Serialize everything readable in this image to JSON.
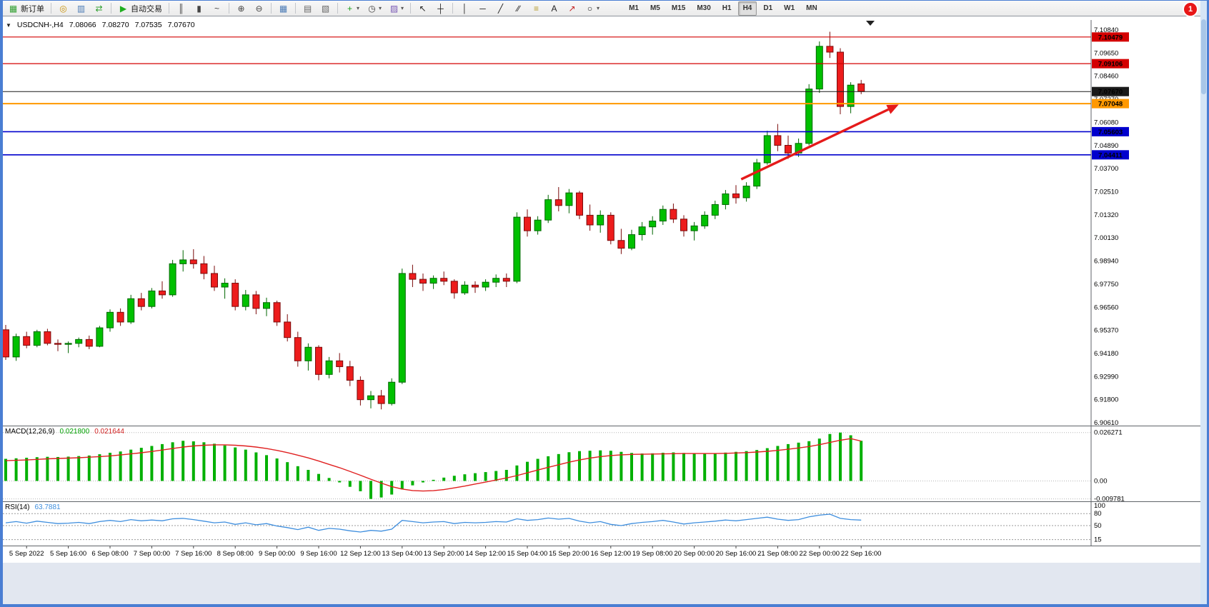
{
  "window": {
    "notification_count": "1"
  },
  "toolbar": {
    "items": [
      {
        "type": "button",
        "name": "new-order-button",
        "icon": "new-order-icon",
        "glyph": "▦",
        "glyph_color": "#2e9e2e",
        "label": "新订单"
      },
      {
        "type": "sep"
      },
      {
        "type": "button",
        "name": "mql-wizard-button",
        "icon": "compass-icon",
        "glyph": "◎",
        "glyph_color": "#c8920a"
      },
      {
        "type": "button",
        "name": "charts-button",
        "icon": "charts-icon",
        "glyph": "▥",
        "glyph_color": "#4a7ab5"
      },
      {
        "type": "button",
        "name": "refresh-button",
        "icon": "refresh-icon",
        "glyph": "⇄",
        "glyph_color": "#2e9e2e"
      },
      {
        "type": "sep"
      },
      {
        "type": "button",
        "name": "autotrading-button",
        "icon": "play-icon",
        "glyph": "▶",
        "glyph_color": "#1fae1f",
        "label": "自动交易"
      },
      {
        "type": "sep"
      },
      {
        "type": "button",
        "name": "bar-chart-button",
        "icon": "bar-chart-icon",
        "glyph": "║",
        "glyph_color": "#444"
      },
      {
        "type": "button",
        "name": "candlestick-chart-button",
        "icon": "candlestick-chart-icon",
        "glyph": "▮",
        "glyph_color": "#444"
      },
      {
        "type": "button",
        "name": "line-chart-button",
        "icon": "line-chart-icon",
        "glyph": "~",
        "glyph_color": "#444"
      },
      {
        "type": "sep"
      },
      {
        "type": "button",
        "name": "zoom-in-button",
        "icon": "zoom-in-icon",
        "glyph": "⊕",
        "glyph_color": "#444"
      },
      {
        "type": "button",
        "name": "zoom-out-button",
        "icon": "zoom-out-icon",
        "glyph": "⊖",
        "glyph_color": "#444"
      },
      {
        "type": "sep"
      },
      {
        "type": "button",
        "name": "tile-windows-button",
        "icon": "tile-windows-icon",
        "glyph": "▦",
        "glyph_color": "#4a7ab5"
      },
      {
        "type": "sep"
      },
      {
        "type": "button",
        "name": "profile-button",
        "icon": "profile-icon",
        "glyph": "▤",
        "glyph_color": "#666"
      },
      {
        "type": "button",
        "name": "cascade-button",
        "icon": "cascade-icon",
        "glyph": "▧",
        "glyph_color": "#666"
      },
      {
        "type": "sep"
      },
      {
        "type": "button",
        "name": "indicators-button",
        "icon": "indicators-plus-icon",
        "glyph": "+",
        "glyph_color": "#1a9e1a",
        "dropdown": true
      },
      {
        "type": "button",
        "name": "periods-button",
        "icon": "clock-icon",
        "glyph": "◷",
        "glyph_color": "#444",
        "dropdown": true
      },
      {
        "type": "button",
        "name": "templates-button",
        "icon": "template-icon",
        "glyph": "▨",
        "glyph_color": "#7a5ab5",
        "dropdown": true
      },
      {
        "type": "sep"
      },
      {
        "type": "button",
        "name": "cursor-button",
        "icon": "cursor-icon",
        "glyph": "↖",
        "glyph_color": "#222"
      },
      {
        "type": "button",
        "name": "crosshair-button",
        "icon": "crosshair-icon",
        "glyph": "┼",
        "glyph_color": "#222"
      },
      {
        "type": "sep"
      },
      {
        "type": "button",
        "name": "vertical-line-button",
        "icon": "vertical-line-icon",
        "glyph": "│",
        "glyph_color": "#222"
      },
      {
        "type": "button",
        "name": "horizontal-line-button",
        "icon": "horizontal-line-icon",
        "glyph": "─",
        "glyph_color": "#222"
      },
      {
        "type": "button",
        "name": "trendline-button",
        "icon": "trendline-icon",
        "glyph": "╱",
        "glyph_color": "#222"
      },
      {
        "type": "button",
        "name": "channel-button",
        "icon": "channel-icon",
        "glyph": "∕∕",
        "glyph_color": "#222"
      },
      {
        "type": "button",
        "name": "fibonacci-button",
        "icon": "fibonacci-icon",
        "glyph": "≡",
        "glyph_color": "#b59a2a"
      },
      {
        "type": "button",
        "name": "text-button",
        "icon": "text-icon",
        "glyph": "A",
        "glyph_color": "#222"
      },
      {
        "type": "button",
        "name": "arrows-button",
        "icon": "arrow-label-icon",
        "glyph": "↗",
        "glyph_color": "#c22222"
      },
      {
        "type": "button",
        "name": "shapes-button",
        "icon": "shapes-icon",
        "glyph": "○",
        "glyph_color": "#222",
        "dropdown": true
      }
    ],
    "timeframes": [
      "M1",
      "M5",
      "M15",
      "M30",
      "H1",
      "H4",
      "D1",
      "W1",
      "MN"
    ],
    "active_timeframe": "H4"
  },
  "chart_data": {
    "type": "candlestick",
    "header": {
      "symbol_period": "USDCNH-,H4",
      "open": "7.08066",
      "high": "7.08270",
      "low": "7.07535",
      "close": "7.07670"
    },
    "price_axis_ticks": [
      "7.10840",
      "7.09650",
      "7.08460",
      "7.07270",
      "7.06080",
      "7.04890",
      "7.03700",
      "7.02510",
      "7.01320",
      "7.00130",
      "6.98940",
      "6.97750",
      "6.96560",
      "6.95370",
      "6.94180",
      "6.92990",
      "6.91800",
      "6.90610"
    ],
    "x_labels": [
      {
        "i": 2,
        "label": "5 Sep 2022"
      },
      {
        "i": 6,
        "label": "5 Sep 16:00"
      },
      {
        "i": 10,
        "label": "6 Sep 08:00"
      },
      {
        "i": 14,
        "label": "7 Sep 00:00"
      },
      {
        "i": 18,
        "label": "7 Sep 16:00"
      },
      {
        "i": 22,
        "label": "8 Sep 08:00"
      },
      {
        "i": 26,
        "label": "9 Sep 00:00"
      },
      {
        "i": 30,
        "label": "9 Sep 16:00"
      },
      {
        "i": 34,
        "label": "12 Sep 12:00"
      },
      {
        "i": 38,
        "label": "13 Sep 04:00"
      },
      {
        "i": 42,
        "label": "13 Sep 20:00"
      },
      {
        "i": 46,
        "label": "14 Sep 12:00"
      },
      {
        "i": 50,
        "label": "15 Sep 04:00"
      },
      {
        "i": 54,
        "label": "15 Sep 20:00"
      },
      {
        "i": 58,
        "label": "16 Sep 12:00"
      },
      {
        "i": 62,
        "label": "19 Sep 08:00"
      },
      {
        "i": 66,
        "label": "20 Sep 00:00"
      },
      {
        "i": 70,
        "label": "20 Sep 16:00"
      },
      {
        "i": 74,
        "label": "21 Sep 08:00"
      },
      {
        "i": 78,
        "label": "22 Sep 00:00"
      },
      {
        "i": 82,
        "label": "22 Sep 16:00"
      }
    ],
    "candles": [
      [
        6.954,
        6.9565,
        6.9385,
        6.94
      ],
      [
        6.94,
        6.952,
        6.938,
        6.9505
      ],
      [
        6.9505,
        6.953,
        6.9445,
        6.946
      ],
      [
        6.946,
        6.954,
        6.945,
        6.953
      ],
      [
        6.953,
        6.9545,
        6.946,
        6.947
      ],
      [
        6.947,
        6.949,
        6.943,
        6.9465
      ],
      [
        6.9465,
        6.948,
        6.942,
        6.947
      ],
      [
        6.947,
        6.95,
        6.945,
        6.949
      ],
      [
        6.949,
        6.951,
        6.944,
        6.9455
      ],
      [
        6.9455,
        6.956,
        6.945,
        6.955
      ],
      [
        6.955,
        6.9645,
        6.953,
        6.963
      ],
      [
        6.963,
        6.965,
        6.956,
        6.958
      ],
      [
        6.958,
        6.972,
        6.957,
        6.97
      ],
      [
        6.97,
        6.973,
        6.964,
        6.966
      ],
      [
        6.966,
        6.9755,
        6.965,
        6.974
      ],
      [
        6.974,
        6.979,
        6.97,
        6.972
      ],
      [
        6.972,
        6.99,
        6.971,
        6.988
      ],
      [
        6.988,
        6.995,
        6.984,
        6.99
      ],
      [
        6.99,
        6.9955,
        6.9855,
        6.988
      ],
      [
        6.988,
        6.992,
        6.98,
        6.983
      ],
      [
        6.983,
        6.987,
        6.974,
        6.976
      ],
      [
        6.976,
        6.9805,
        6.97,
        6.978
      ],
      [
        6.978,
        6.98,
        6.964,
        6.966
      ],
      [
        6.966,
        6.9745,
        6.964,
        6.972
      ],
      [
        6.972,
        6.974,
        6.962,
        6.965
      ],
      [
        6.965,
        6.9705,
        6.961,
        6.968
      ],
      [
        6.968,
        6.969,
        6.956,
        6.958
      ],
      [
        6.958,
        6.962,
        6.948,
        6.95
      ],
      [
        6.95,
        6.953,
        6.935,
        6.938
      ],
      [
        6.938,
        6.947,
        6.933,
        6.945
      ],
      [
        6.945,
        6.946,
        6.928,
        6.931
      ],
      [
        6.931,
        6.94,
        6.929,
        6.938
      ],
      [
        6.938,
        6.942,
        6.932,
        6.935
      ],
      [
        6.935,
        6.938,
        6.925,
        6.928
      ],
      [
        6.928,
        6.93,
        6.915,
        6.918
      ],
      [
        6.918,
        6.9225,
        6.9135,
        6.92
      ],
      [
        6.92,
        6.923,
        6.913,
        6.916
      ],
      [
        6.916,
        6.929,
        6.915,
        6.927
      ],
      [
        6.927,
        6.9855,
        6.926,
        6.983
      ],
      [
        6.983,
        6.9875,
        6.976,
        6.98
      ],
      [
        6.98,
        6.983,
        6.974,
        6.978
      ],
      [
        6.978,
        6.982,
        6.975,
        6.9805
      ],
      [
        6.9805,
        6.984,
        6.977,
        6.979
      ],
      [
        6.979,
        6.98,
        6.97,
        6.973
      ],
      [
        6.973,
        6.979,
        6.972,
        6.977
      ],
      [
        6.977,
        6.979,
        6.973,
        6.976
      ],
      [
        6.976,
        6.98,
        6.974,
        6.9785
      ],
      [
        6.9785,
        6.9825,
        6.976,
        6.9805
      ],
      [
        6.9805,
        6.983,
        6.976,
        6.979
      ],
      [
        6.979,
        7.0145,
        6.978,
        7.012
      ],
      [
        7.012,
        7.016,
        7.002,
        7.005
      ],
      [
        7.005,
        7.0125,
        7.003,
        7.0105
      ],
      [
        7.0105,
        7.0235,
        7.009,
        7.021
      ],
      [
        7.021,
        7.0275,
        7.015,
        7.018
      ],
      [
        7.018,
        7.0265,
        7.014,
        7.0245
      ],
      [
        7.0245,
        7.0255,
        7.011,
        7.013
      ],
      [
        7.013,
        7.0185,
        7.005,
        7.008
      ],
      [
        7.008,
        7.0155,
        7.004,
        7.013
      ],
      [
        7.013,
        7.0145,
        6.998,
        7.0
      ],
      [
        7.0,
        7.006,
        6.993,
        6.996
      ],
      [
        6.996,
        7.0055,
        6.995,
        7.003
      ],
      [
        7.003,
        7.0095,
        7.0,
        7.007
      ],
      [
        7.007,
        7.0125,
        7.003,
        7.01
      ],
      [
        7.01,
        7.018,
        7.008,
        7.016
      ],
      [
        7.016,
        7.019,
        7.009,
        7.011
      ],
      [
        7.011,
        7.013,
        7.002,
        7.005
      ],
      [
        7.005,
        7.0095,
        7.0,
        7.0075
      ],
      [
        7.0075,
        7.015,
        7.006,
        7.013
      ],
      [
        7.013,
        7.0205,
        7.011,
        7.0185
      ],
      [
        7.0185,
        7.026,
        7.016,
        7.024
      ],
      [
        7.024,
        7.0285,
        7.019,
        7.022
      ],
      [
        7.022,
        7.03,
        7.02,
        7.028
      ],
      [
        7.028,
        7.042,
        7.0265,
        7.04
      ],
      [
        7.04,
        7.0565,
        7.039,
        7.054
      ],
      [
        7.054,
        7.06,
        7.046,
        7.049
      ],
      [
        7.049,
        7.054,
        7.042,
        7.045
      ],
      [
        7.045,
        7.0525,
        7.043,
        7.05
      ],
      [
        7.05,
        7.0805,
        7.049,
        7.078
      ],
      [
        7.078,
        7.1025,
        7.076,
        7.1
      ],
      [
        7.1,
        7.1075,
        7.094,
        7.097
      ],
      [
        7.097,
        7.099,
        7.065,
        7.069
      ],
      [
        7.069,
        7.0815,
        7.0655,
        7.08
      ],
      [
        7.08066,
        7.0827,
        7.07535,
        7.0767
      ]
    ],
    "hlines": [
      {
        "price": 7.10479,
        "label": "7.10479",
        "color": "#d40000",
        "width": 1.2,
        "name": "resistance-line-1"
      },
      {
        "price": 7.09106,
        "label": "7.09106",
        "color": "#d40000",
        "width": 1.2,
        "name": "resistance-line-2"
      },
      {
        "price": 7.0767,
        "label": "7.07670",
        "color": "#1a1a1a",
        "width": 1,
        "name": "current-price-line"
      },
      {
        "price": 7.07048,
        "label": "7.07048",
        "color": "#ff9800",
        "width": 2,
        "name": "support-line-orange"
      },
      {
        "price": 7.05603,
        "label": "7.05603",
        "color": "#0000cd",
        "width": 1.6,
        "name": "support-line-blue-1"
      },
      {
        "price": 7.04411,
        "label": "7.04411",
        "color": "#0000cd",
        "width": 1.6,
        "name": "support-line-blue-2"
      }
    ],
    "trend_arrow": {
      "from_index": 70.5,
      "from_price": 7.0315,
      "to_index": 85.6,
      "to_price": 7.07,
      "color": "#e51a1a"
    },
    "macd": {
      "label": "MACD(12,26,9)",
      "main_value": "0.021800",
      "signal_value": "0.021644",
      "axis_ticks": [
        "0.026271",
        "0.00",
        "-0.009781"
      ],
      "histogram": [
        0.012,
        0.0123,
        0.0126,
        0.0129,
        0.0131,
        0.013,
        0.0132,
        0.0135,
        0.0138,
        0.0145,
        0.0153,
        0.016,
        0.017,
        0.018,
        0.019,
        0.02,
        0.021,
        0.0218,
        0.0215,
        0.021,
        0.0202,
        0.0193,
        0.0182,
        0.017,
        0.0155,
        0.014,
        0.0122,
        0.0102,
        0.008,
        0.006,
        0.0038,
        0.0016,
        -0.0008,
        -0.0032,
        -0.0056,
        -0.009781,
        -0.009,
        -0.0074,
        -0.0046,
        -0.0024,
        -0.0008,
        0.0006,
        0.0018,
        0.0028,
        0.0036,
        0.0042,
        0.0048,
        0.0054,
        0.006,
        0.0084,
        0.0104,
        0.012,
        0.0134,
        0.0146,
        0.0156,
        0.0162,
        0.0164,
        0.0166,
        0.0164,
        0.0158,
        0.0152,
        0.0149,
        0.015,
        0.0153,
        0.0155,
        0.0152,
        0.0148,
        0.0147,
        0.015,
        0.0154,
        0.0158,
        0.0162,
        0.0168,
        0.0178,
        0.019,
        0.02,
        0.0208,
        0.0216,
        0.023,
        0.0255,
        0.026271,
        0.0248,
        0.0218
      ],
      "signal": [
        0.011,
        0.0112,
        0.0114,
        0.0117,
        0.012,
        0.0122,
        0.0124,
        0.0126,
        0.0129,
        0.0132,
        0.0136,
        0.0141,
        0.0147,
        0.0153,
        0.016,
        0.0168,
        0.0176,
        0.0184,
        0.019,
        0.0194,
        0.0196,
        0.0196,
        0.0194,
        0.019,
        0.0184,
        0.0176,
        0.0166,
        0.0154,
        0.014,
        0.0125,
        0.0108,
        0.009,
        0.0072,
        0.0052,
        0.0031,
        0.0009,
        -0.0012,
        -0.0031,
        -0.0044,
        -0.0052,
        -0.0055,
        -0.0053,
        -0.0047,
        -0.0038,
        -0.0028,
        -0.0017,
        -0.0006,
        0.0005,
        0.0016,
        0.0029,
        0.0044,
        0.0059,
        0.0074,
        0.0088,
        0.0102,
        0.0114,
        0.0124,
        0.0132,
        0.0138,
        0.0142,
        0.0144,
        0.0145,
        0.0146,
        0.0147,
        0.0148,
        0.0149,
        0.0149,
        0.0149,
        0.0149,
        0.015,
        0.0152,
        0.0154,
        0.0157,
        0.0161,
        0.0166,
        0.0172,
        0.0179,
        0.0187,
        0.0197,
        0.0209,
        0.0221,
        0.023,
        0.021644
      ]
    },
    "rsi": {
      "label": "RSI(14)",
      "value": "63.7881",
      "levels": [
        80,
        50,
        15
      ],
      "axis_ticks": [
        "100",
        "80",
        "50",
        "15"
      ],
      "values": [
        57,
        60,
        56,
        61,
        58,
        55,
        56,
        58,
        55,
        60,
        63,
        60,
        65,
        62,
        64,
        62,
        67,
        68,
        65,
        61,
        57,
        59,
        53,
        57,
        52,
        55,
        49,
        45,
        40,
        46,
        38,
        43,
        41,
        37,
        34,
        38,
        36,
        41,
        63,
        60,
        57,
        59,
        60,
        55,
        58,
        57,
        58,
        60,
        59,
        67,
        63,
        65,
        69,
        66,
        68,
        61,
        57,
        60,
        53,
        50,
        55,
        58,
        60,
        63,
        59,
        54,
        57,
        59,
        61,
        64,
        62,
        65,
        68,
        71,
        66,
        63,
        65,
        72,
        76,
        78.5,
        68,
        65,
        63.7881
      ]
    },
    "colors": {
      "up_candle": "#00c000",
      "up_border": "#006600",
      "down_candle": "#ed1c1c",
      "down_border": "#7a0b0b",
      "macd_histogram": "#00b000",
      "macd_signal": "#e02020",
      "rsi_line": "#3e8ede",
      "trend_arrow": "#e51a1a",
      "resistance": "#d40000",
      "support_blue": "#0000cd",
      "support_orange": "#ff9800"
    }
  }
}
